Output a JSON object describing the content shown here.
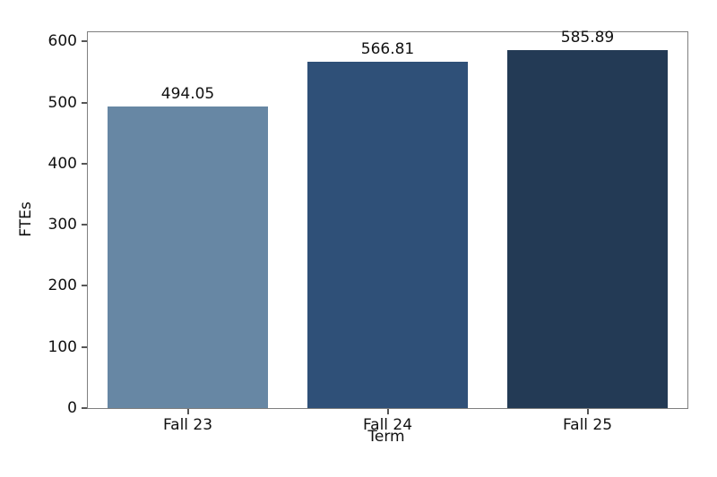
{
  "figure": {
    "background_color": "#ffffff",
    "spine_color": "#7f7f7f",
    "tick_color": "#555555",
    "text_color": "#111111"
  },
  "chart_data": {
    "type": "bar",
    "title": "",
    "categories": [
      "Fall 23",
      "Fall 24",
      "Fall 25"
    ],
    "values": [
      494.05,
      566.81,
      585.89
    ],
    "value_labels": [
      "494.05",
      "566.81",
      "585.89"
    ],
    "bar_colors": [
      "#6787a4",
      "#2f5078",
      "#233a55"
    ],
    "xlabel": "Term",
    "ylabel": "FTEs",
    "ylim": [
      0,
      615
    ],
    "yticks": [
      0,
      100,
      200,
      300,
      400,
      500,
      600
    ],
    "ytick_labels": [
      "0",
      "100",
      "200",
      "300",
      "400",
      "500",
      "600"
    ],
    "bar_width_fraction": 0.8,
    "grid": false,
    "legend": null
  }
}
